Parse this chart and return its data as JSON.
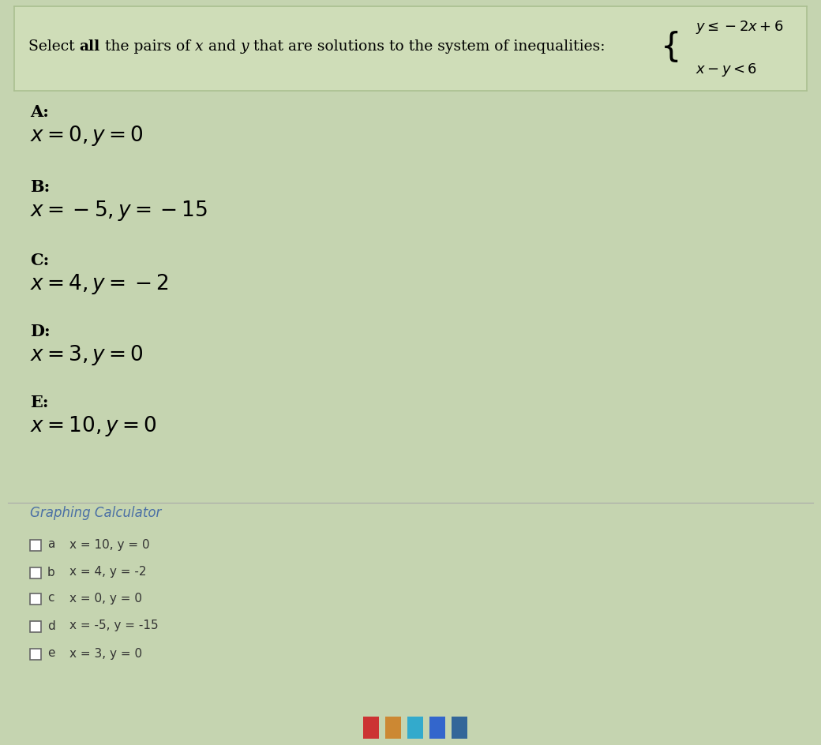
{
  "bg_color": "#c5d4b0",
  "question_box_color": "#cfddb8",
  "question_box_border": "#aabf90",
  "bottom_section_color": "#d8ddd0",
  "options": [
    {
      "label": "A:",
      "eq": "x = 0, y = 0"
    },
    {
      "label": "B:",
      "eq": "x = -5, y = -15"
    },
    {
      "label": "C:",
      "eq": "x = 4, y = -2"
    },
    {
      "label": "D:",
      "eq": "x = 3, y = 0"
    },
    {
      "label": "E:",
      "eq": "x = 10, y = 0"
    }
  ],
  "graphing_calc_label": "Graphing Calculator",
  "graphing_calc_color": "#4a6fa5",
  "checkbox_options": [
    {
      "letter": "a",
      "text": "x = 10, y = 0"
    },
    {
      "letter": "b",
      "text": "x = 4, y = -2"
    },
    {
      "letter": "c",
      "text": "x = 0, y = 0"
    },
    {
      "letter": "d",
      "text": "x = -5, y = -15"
    },
    {
      "letter": "e",
      "text": "x = 3, y = 0"
    }
  ],
  "taskbar_color": "#1c4f8a",
  "fig_width": 10.4,
  "fig_height": 9.44,
  "dpi": 100
}
